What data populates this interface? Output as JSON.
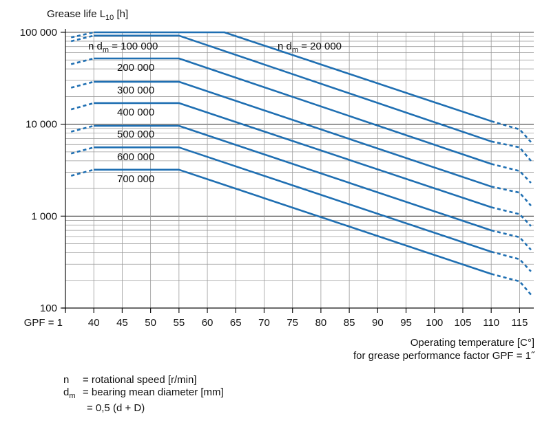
{
  "chart_data": {
    "type": "line",
    "title": "",
    "ylabel_main": "Grease life L",
    "ylabel_sub": "10",
    "ylabel_unit": " [h]",
    "xlabel_line1": "Operating temperature [C°]",
    "xlabel_line2": "for grease performance factor GPF = 1˝",
    "y_scale": "log",
    "ylim": [
      100,
      100000
    ],
    "y_ticks": [
      {
        "value": 100,
        "label": "100"
      },
      {
        "value": 1000,
        "label": "1 000"
      },
      {
        "value": 10000,
        "label": "10 000"
      },
      {
        "value": 100000,
        "label": "100 000"
      }
    ],
    "x_axis_start_label": "GPF = 1",
    "x_tick_labels": [
      "40",
      "45",
      "50",
      "55",
      "60",
      "65",
      "70",
      "75",
      "80",
      "85",
      "90",
      "95",
      "100",
      "105",
      "110",
      "115"
    ],
    "x_ticks": [
      40,
      45,
      50,
      55,
      60,
      65,
      70,
      75,
      80,
      85,
      90,
      95,
      100,
      105,
      110,
      115
    ],
    "xlim": [
      35,
      117.5
    ],
    "grid": true,
    "line_color": "#1f6fb2",
    "series": [
      {
        "name_prefix": "n d",
        "name_sub": "m",
        "name_suffix": " = 20 000",
        "name": "n dm = 20 000",
        "points": [
          {
            "x": 40,
            "y": 100000
          },
          {
            "x": 63,
            "y": 100000
          },
          {
            "x": 110,
            "y": 10800
          }
        ],
        "dashed": [
          {
            "x": 110,
            "y": 10800
          },
          {
            "x": 115,
            "y": 8800
          },
          {
            "x": 117,
            "y": 6400
          }
        ],
        "dashed_left": [
          {
            "x": 36,
            "y": 88000
          },
          {
            "x": 40,
            "y": 100000
          }
        ]
      },
      {
        "name_prefix": "n d",
        "name_sub": "m",
        "name_suffix": " = 100 000",
        "name": "n dm = 100 000",
        "points": [
          {
            "x": 40,
            "y": 92000
          },
          {
            "x": 55,
            "y": 92000
          },
          {
            "x": 110,
            "y": 6500
          }
        ],
        "dashed": [
          {
            "x": 110,
            "y": 6500
          },
          {
            "x": 115,
            "y": 5600
          },
          {
            "x": 117,
            "y": 4000
          }
        ],
        "dashed_left": [
          {
            "x": 36,
            "y": 80000
          },
          {
            "x": 40,
            "y": 92000
          }
        ]
      },
      {
        "name": "200 000",
        "points": [
          {
            "x": 40,
            "y": 52000
          },
          {
            "x": 55,
            "y": 52000
          },
          {
            "x": 110,
            "y": 3700
          }
        ],
        "dashed": [
          {
            "x": 110,
            "y": 3700
          },
          {
            "x": 115,
            "y": 3100
          },
          {
            "x": 117,
            "y": 2300
          }
        ],
        "dashed_left": [
          {
            "x": 36,
            "y": 45000
          },
          {
            "x": 40,
            "y": 52000
          }
        ]
      },
      {
        "name": "300 000",
        "points": [
          {
            "x": 40,
            "y": 29000
          },
          {
            "x": 55,
            "y": 29000
          },
          {
            "x": 110,
            "y": 2100
          }
        ],
        "dashed": [
          {
            "x": 110,
            "y": 2100
          },
          {
            "x": 115,
            "y": 1800
          },
          {
            "x": 117,
            "y": 1300
          }
        ],
        "dashed_left": [
          {
            "x": 36,
            "y": 25000
          },
          {
            "x": 40,
            "y": 29000
          }
        ]
      },
      {
        "name": "400 000",
        "points": [
          {
            "x": 40,
            "y": 17000
          },
          {
            "x": 55,
            "y": 17000
          },
          {
            "x": 110,
            "y": 1250
          }
        ],
        "dashed": [
          {
            "x": 110,
            "y": 1250
          },
          {
            "x": 115,
            "y": 1050
          },
          {
            "x": 117,
            "y": 780
          }
        ],
        "dashed_left": [
          {
            "x": 36,
            "y": 14500
          },
          {
            "x": 40,
            "y": 17000
          }
        ]
      },
      {
        "name": "500 000",
        "points": [
          {
            "x": 40,
            "y": 9600
          },
          {
            "x": 55,
            "y": 9600
          },
          {
            "x": 110,
            "y": 700
          }
        ],
        "dashed": [
          {
            "x": 110,
            "y": 700
          },
          {
            "x": 115,
            "y": 590
          },
          {
            "x": 117,
            "y": 430
          }
        ],
        "dashed_left": [
          {
            "x": 36,
            "y": 8300
          },
          {
            "x": 40,
            "y": 9600
          }
        ]
      },
      {
        "name": "600 000",
        "points": [
          {
            "x": 40,
            "y": 5600
          },
          {
            "x": 55,
            "y": 5600
          },
          {
            "x": 110,
            "y": 410
          }
        ],
        "dashed": [
          {
            "x": 110,
            "y": 410
          },
          {
            "x": 115,
            "y": 340
          },
          {
            "x": 117,
            "y": 250
          }
        ],
        "dashed_left": [
          {
            "x": 36,
            "y": 4800
          },
          {
            "x": 40,
            "y": 5600
          }
        ]
      },
      {
        "name": "700 000",
        "points": [
          {
            "x": 40,
            "y": 3200
          },
          {
            "x": 55,
            "y": 3200
          },
          {
            "x": 110,
            "y": 235
          }
        ],
        "dashed": [
          {
            "x": 110,
            "y": 235
          },
          {
            "x": 115,
            "y": 195
          },
          {
            "x": 117,
            "y": 140
          }
        ],
        "dashed_left": [
          {
            "x": 36,
            "y": 2750
          },
          {
            "x": 40,
            "y": 3200
          }
        ]
      }
    ]
  },
  "legend": {
    "n_symbol": "n",
    "n_text": "= rotational speed [r/min]",
    "dm_symbol": "d",
    "dm_sub": "m",
    "dm_text": "= bearing mean diameter [mm]",
    "dm_formula": "= 0,5 (d + D)"
  }
}
